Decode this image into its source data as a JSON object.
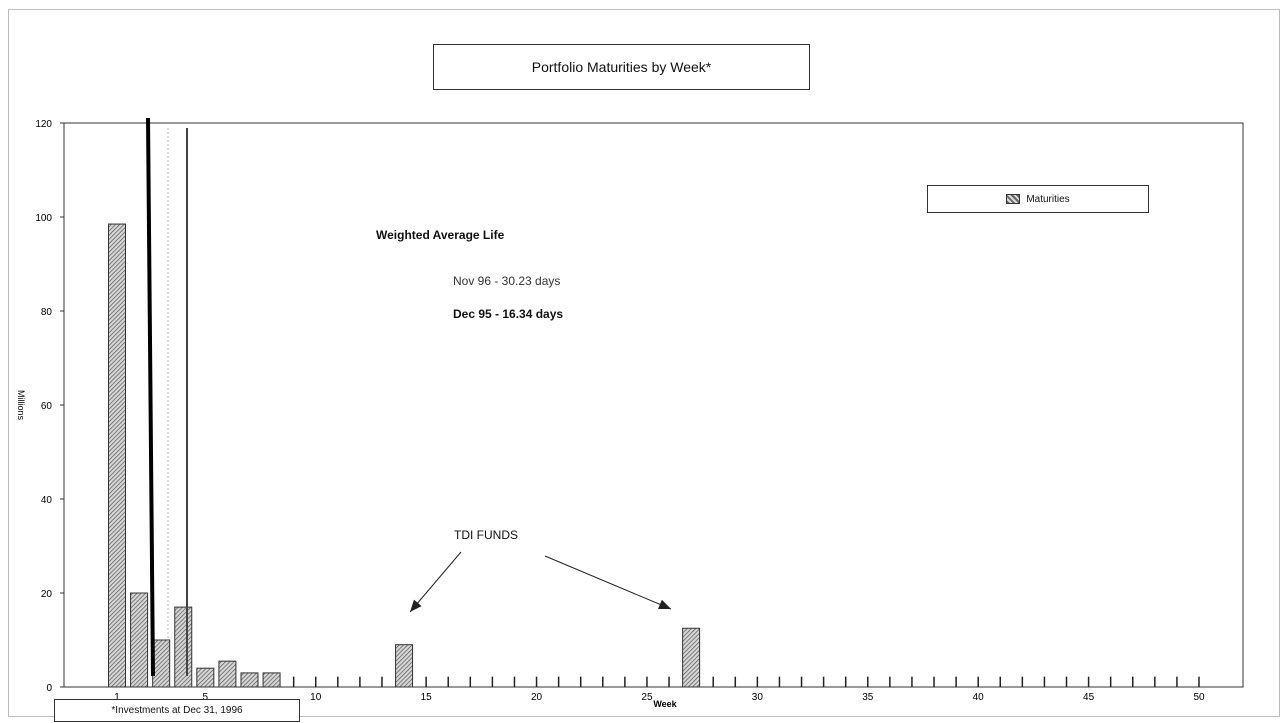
{
  "chart_data": {
    "type": "bar",
    "title": "Portfolio Maturities by Week*",
    "xlabel": "Week",
    "ylabel": "Millions",
    "ylim": [
      0,
      120
    ],
    "yticks": [
      0,
      20,
      40,
      60,
      80,
      100,
      120
    ],
    "xticks": [
      1,
      5,
      10,
      15,
      20,
      25,
      30,
      35,
      40,
      45,
      50
    ],
    "xlim": [
      1,
      51
    ],
    "legend": {
      "position": "top-right",
      "entries": [
        "Maturities"
      ]
    },
    "grid": false,
    "series": [
      {
        "name": "Maturities",
        "weeks": [
          1,
          2,
          3,
          4,
          5,
          6,
          7,
          8,
          9,
          10,
          11,
          12,
          13,
          14,
          15,
          16,
          17,
          18,
          19,
          20,
          21,
          22,
          23,
          24,
          25,
          26,
          27,
          28,
          29,
          30,
          31,
          32,
          33,
          34,
          35,
          36,
          37,
          38,
          39,
          40,
          41,
          42,
          43,
          44,
          45,
          46,
          47,
          48,
          49,
          50
        ],
        "values": [
          98.5,
          20,
          10,
          17,
          4,
          5.5,
          3,
          3,
          0.5,
          0.5,
          0.5,
          0.5,
          0.5,
          9,
          0.5,
          0.5,
          0.5,
          0.5,
          0.5,
          0.5,
          0.5,
          0.5,
          0.5,
          0.5,
          0.5,
          0.5,
          12.5,
          0.5,
          0.5,
          0.5,
          0.5,
          0.5,
          0.5,
          0.5,
          0.5,
          0.5,
          0.5,
          0.5,
          0.5,
          0.5,
          0.5,
          0.5,
          0.5,
          0.5,
          0.5,
          0.5,
          0.5,
          0.5,
          0.5,
          0.5
        ]
      }
    ],
    "annotations": {
      "wal_title": "Weighted Average Life",
      "wal_nov": "Nov 96 - 30.23 days",
      "wal_dec": "Dec 95 - 16.34 days",
      "tdi": "TDI FUNDS"
    },
    "footnote": "*Investments at Dec 31, 1996"
  }
}
